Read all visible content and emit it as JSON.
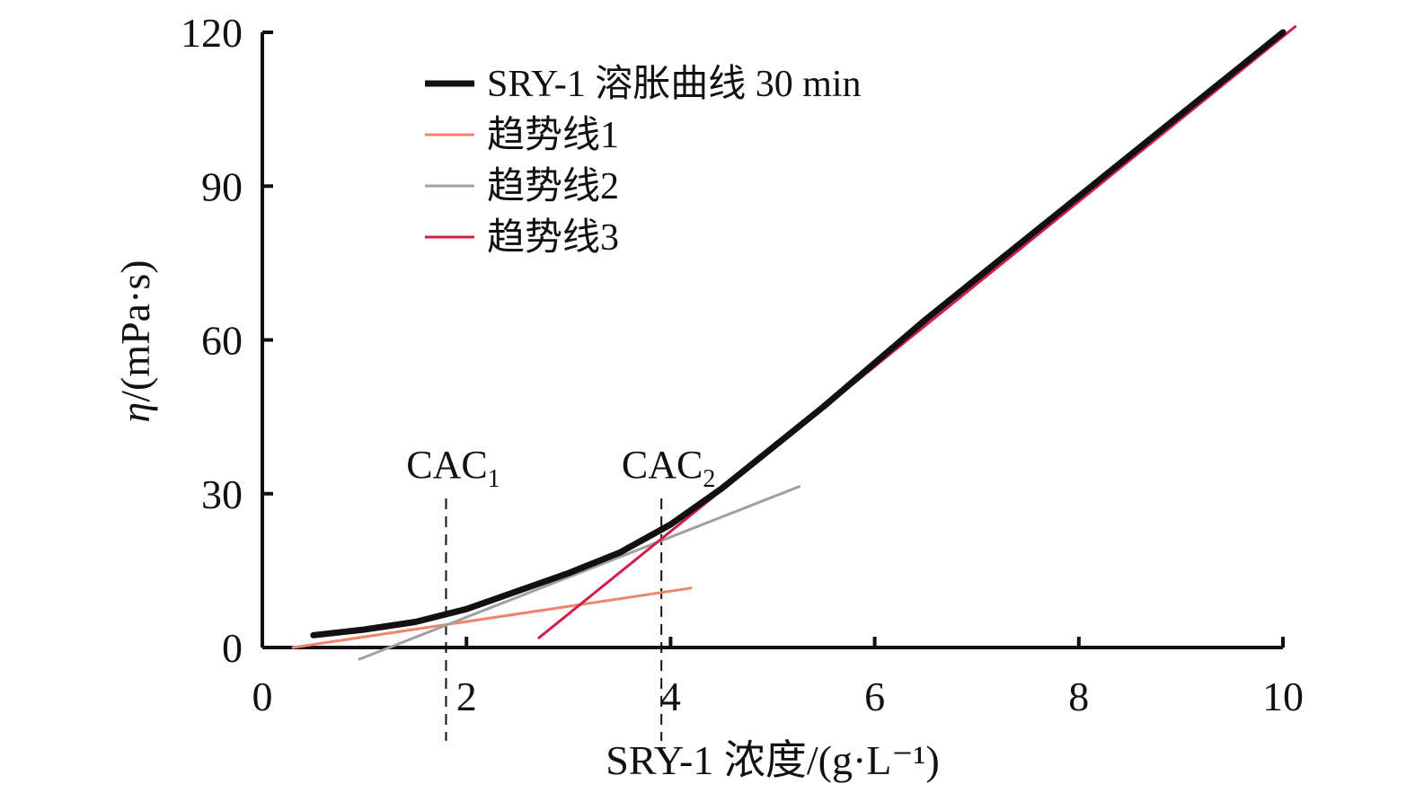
{
  "chart_data": {
    "type": "line",
    "x_label": "SRY-1 浓度/(g·L⁻¹)",
    "y_label": {
      "symbol": "η",
      "unit": "/(mPa·s)"
    },
    "xlim": [
      0,
      10
    ],
    "xticks": [
      0,
      2,
      4,
      6,
      8,
      10
    ],
    "ylim": [
      0,
      120
    ],
    "yticks": [
      0,
      30,
      60,
      90,
      120
    ],
    "series": [
      {
        "name": "SRY-1 溶胀曲线 30 min",
        "color": "#111111",
        "x": [
          0.5,
          1.0,
          1.5,
          2.0,
          2.5,
          3.0,
          3.5,
          4.0,
          4.5,
          5.0,
          5.5,
          6.0,
          6.5,
          7.0,
          7.5,
          8.0,
          8.5,
          9.0,
          9.5,
          10.0
        ],
        "values": [
          2.4,
          3.5,
          5,
          7.5,
          11,
          14.5,
          18.5,
          24,
          31,
          39,
          47,
          55.5,
          64,
          72,
          80,
          88,
          96,
          104,
          112,
          120
        ]
      },
      {
        "name": "趋势线1",
        "color": "#f0846c",
        "x": [
          0.3,
          4.2
        ],
        "values": [
          0,
          11.6
        ]
      },
      {
        "name": "趋势线2",
        "color": "#a0a0a0",
        "x": [
          0.95,
          5.26
        ],
        "values": [
          -2.3,
          31.4
        ]
      },
      {
        "name": "趋势线3",
        "color": "#d0204a",
        "x": [
          2.71,
          10.12
        ],
        "values": [
          1.9,
          121.1
        ]
      }
    ],
    "annotations": [
      {
        "text": "CAC",
        "sub": "1",
        "x": 1.8
      },
      {
        "text": "CAC",
        "sub": "2",
        "x": 3.91
      }
    ]
  }
}
